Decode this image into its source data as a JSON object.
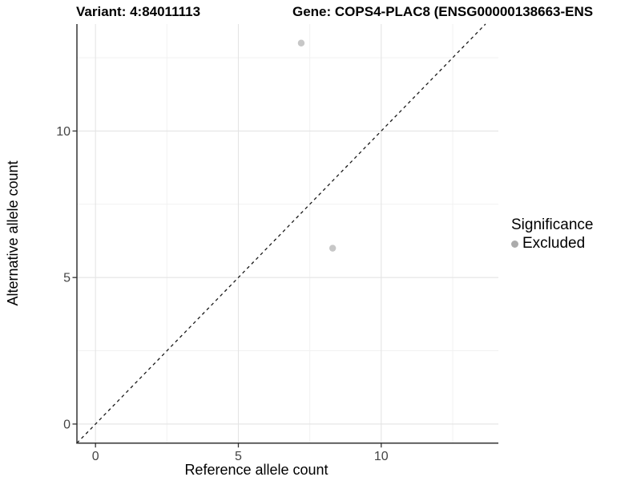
{
  "figure": {
    "title_left": "Variant: 4:84011113",
    "title_right": "Gene: COPS4-PLAC8 (ENSG00000138663-ENS"
  },
  "legend": {
    "title": "Significance",
    "items": [
      {
        "label": "Excluded",
        "color": "#ababab"
      }
    ]
  },
  "chart_data": {
    "type": "scatter",
    "xlabel": "Reference allele count",
    "ylabel": "Alternative allele count",
    "x_ticks": [
      0,
      5,
      10
    ],
    "y_ticks": [
      0,
      5,
      10
    ],
    "x_minor_ticks": [
      2.5,
      7.5,
      12.5
    ],
    "y_minor_ticks": [
      2.5,
      7.5,
      12.5
    ],
    "xlim": [
      -0.65,
      14.1
    ],
    "ylim": [
      -0.65,
      13.65
    ],
    "series": [
      {
        "name": "Excluded",
        "color": "#c7c7c7",
        "point_radius": 4.2,
        "points": [
          [
            7.2,
            13
          ],
          [
            8.3,
            6
          ]
        ]
      }
    ],
    "identity_line": {
      "slope": 1,
      "intercept": 0,
      "style": "dashed",
      "color": "#1a1a1a"
    },
    "grid": {
      "major_color": "#e4e4e4",
      "minor_color": "#f1f1f1"
    },
    "axis_color": "#333333",
    "tick_label_color": "#444444",
    "axis_title_color": "#000000"
  }
}
